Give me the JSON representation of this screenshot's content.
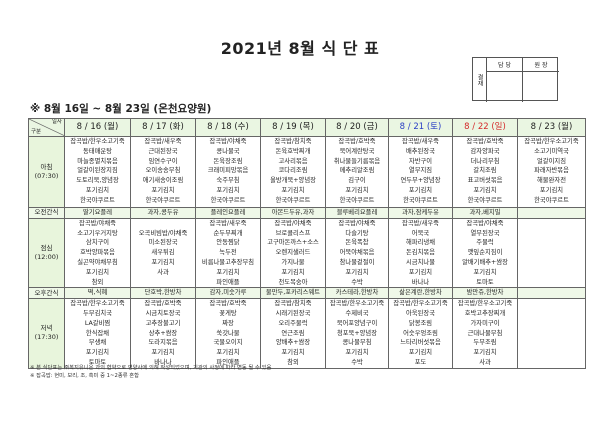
{
  "title": "2021년 8월 식 단 표",
  "approval": {
    "label": "결재",
    "columns": [
      "담 당",
      "원 장"
    ]
  },
  "subtitle": "※ 8월 16일 ~ 8월 23일 (온천요양원)",
  "table": {
    "corner_top": "일자",
    "corner_bottom": "구분",
    "days": [
      {
        "label": "8 / 16 (월)",
        "type": "weekday"
      },
      {
        "label": "8 / 17 (화)",
        "type": "weekday"
      },
      {
        "label": "8 / 18 (수)",
        "type": "weekday"
      },
      {
        "label": "8 / 19 (목)",
        "type": "weekday"
      },
      {
        "label": "8 / 20 (금)",
        "type": "weekday"
      },
      {
        "label": "8 / 21 (토)",
        "type": "saturday"
      },
      {
        "label": "8 / 22 (일)",
        "type": "sunday"
      },
      {
        "label": "8 / 23 (월)",
        "type": "weekday"
      }
    ],
    "rows": [
      {
        "label": "아침",
        "time": "(07:30)",
        "kind": "meal",
        "cells": [
          [
            "잡곡밥/한우소고기죽",
            "동태매운탕",
            "마늘종멸치볶음",
            "얼갈이된장지짐",
            "도토리묵,양념장",
            "포기김치",
            "한국야쿠르트"
          ],
          [
            "잡곡밥/새우죽",
            "근대된장국",
            "임연수구이",
            "오이송송무침",
            "애기새송이조림",
            "포기김치",
            "한국야쿠르트"
          ],
          [
            "잡곡밥/야채죽",
            "콩나물국",
            "돈육장조림",
            "크래미피망볶음",
            "숙주무침",
            "포기김치",
            "한국야쿠르트"
          ],
          [
            "잡곡밥/참치죽",
            "돈육호박찌개",
            "고사리볶음",
            "코다리조림",
            "올방개묵+양념장",
            "포기김치",
            "한국야쿠르트"
          ],
          [
            "잡곡밥/호박죽",
            "북어계란탕국",
            "취나물들기름볶음",
            "메추리알조림",
            "김구이",
            "포기김치",
            "한국야쿠르트"
          ],
          [
            "잡곡밥/새우죽",
            "배추된장국",
            "자반구이",
            "열무지짐",
            "연두부+양념장",
            "포기김치",
            "한국야쿠르트"
          ],
          [
            "잡곡밥/호박죽",
            "감자양파국",
            "더나리무침",
            "갈치조림",
            "표고버섯볶음",
            "포기김치",
            "한국야쿠르트"
          ],
          [
            "잡곡밥/한우소고기죽",
            "소고기미역국",
            "얼갈이지짐",
            "파래자반볶음",
            "해물완자전",
            "포기김치",
            "한국야쿠르트"
          ]
        ]
      },
      {
        "label": "오전간식",
        "kind": "snack",
        "cells": [
          [
            "딸기요플레"
          ],
          [
            "과자,콩두유"
          ],
          [
            "플레인요플레"
          ],
          [
            "아몬드두유,과자"
          ],
          [
            "블루베리요플레"
          ],
          [
            "과자,잠케두유"
          ],
          [
            "과자,베지밀"
          ],
          []
        ]
      },
      {
        "label": "점심",
        "time": "(12:00)",
        "kind": "meal",
        "cells": [
          [
            "잡곡밥/야채죽",
            "소고기우거지탕",
            "삼치구이",
            "호박양파볶음",
            "실곤약야채무침",
            "포기김치",
            "참외"
          ],
          [
            "",
            "오곡비빔밥/야채죽",
            "미소된장국",
            "새우튀김",
            "포기김치",
            "사과"
          ],
          [
            "잡곡밥/새우죽",
            "순두부찌개",
            "안동찜닭",
            "녹두전",
            "비름나물고추장무침",
            "포기김치",
            "파인애플"
          ],
          [
            "잡곡밥/야채죽",
            "브로콜리스프",
            "고구마돈까스+소스",
            "오렌지샐러드",
            "가지나물",
            "포기김치",
            "천도복숭아"
          ],
          [
            "잡곡밥/야채죽",
            "다슬기탕",
            "돈육폭찹",
            "어묵야채볶음",
            "참나물겉절이",
            "포기김치",
            "수박"
          ],
          [
            "잡곡밥/새우죽",
            "어묵국",
            "해파리냉채",
            "돈김치볶음",
            "시금치나물",
            "포기김치",
            "바나나"
          ],
          [
            "잡곡밥/야채죽",
            "열무된장국",
            "주물럭",
            "깻잎순지짐이",
            "알배기배추+쌈장",
            "포기김치",
            "토마토"
          ],
          []
        ]
      },
      {
        "label": "오후간식",
        "kind": "snack",
        "cells": [
          [
            "떡,식혜"
          ],
          [
            "단호박,한방차"
          ],
          [
            "감자,미숫가루"
          ],
          [
            "물만두,포카리스웨트"
          ],
          [
            "카스테라,한방차"
          ],
          [
            "삶은계란,한방차"
          ],
          [
            "밤만쥬,한방차"
          ],
          []
        ]
      },
      {
        "label": "저녁",
        "time": "(17:30)",
        "kind": "meal",
        "cells": [
          [
            "잡곡밥/한우소고기죽",
            "두부김치국",
            "LA갈비찜",
            "한식잡채",
            "무생채",
            "포기김치",
            "토마토"
          ],
          [
            "잡곡밥/호박죽",
            "시금치토장국",
            "고추장불고기",
            "상추+쌈장",
            "도라지볶음",
            "포기김치",
            "바나나"
          ],
          [
            "잡곡밥/호박죽",
            "꽃게탕",
            "짜장",
            "쑥갓나물",
            "국물오이지",
            "포기김치",
            "파인애플"
          ],
          [
            "잡곡밥/참치죽",
            "시래기된장국",
            "오리주물럭",
            "연근조림",
            "양배추+쌈장",
            "포기김치",
            "참외"
          ],
          [
            "잡곡밥/한우소고기죽",
            "수제비국",
            "북어포양념구이",
            "청포묵+양념장",
            "콩나물무침",
            "포기김치",
            "수박"
          ],
          [
            "잡곡밥/한우소고기죽",
            "아욱된장국",
            "닭봉조림",
            "어슷우엉조림",
            "느타리버섯볶음",
            "포기김치",
            "포도"
          ],
          [
            "잡곡밥/한우소고기죽",
            "호박고추장찌개",
            "가자미구이",
            "근대나물무침",
            "두부조림",
            "포기김치",
            "사과"
          ],
          []
        ]
      }
    ]
  },
  "notes": [
    "※ 본 식단표는 ㈜복지유니온 과의 협약으로 영양사에 의해 작성되었으며, 기관의 사정에 따라 변동 될 수 있음",
    "※ 잡곡밥: 현미, 보리, 조, 흑미 중 1~2종류 혼합"
  ],
  "colors": {
    "saturday": "#2a3fc4",
    "sunday": "#d42a2a",
    "header_bg": "#eaf6e2",
    "label_bg": "#e8f5dc"
  }
}
